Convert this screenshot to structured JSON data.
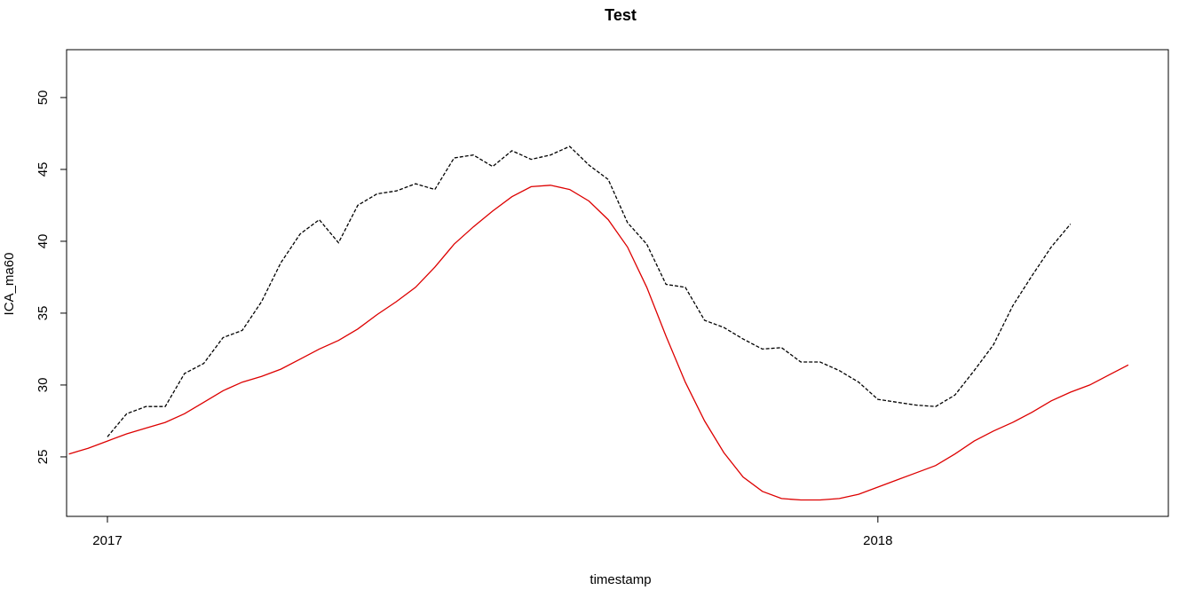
{
  "chart_data": {
    "type": "line",
    "title": "Test",
    "x_label": "timestamp",
    "y_label": "ICA_ma60",
    "x": [
      2016.95,
      2016.975,
      2017.0,
      2017.025,
      2017.05,
      2017.075,
      2017.1,
      2017.125,
      2017.15,
      2017.175,
      2017.2,
      2017.225,
      2017.25,
      2017.275,
      2017.3,
      2017.325,
      2017.35,
      2017.375,
      2017.4,
      2017.425,
      2017.45,
      2017.475,
      2017.5,
      2017.525,
      2017.55,
      2017.575,
      2017.6,
      2017.625,
      2017.65,
      2017.675,
      2017.7,
      2017.725,
      2017.75,
      2017.775,
      2017.8,
      2017.825,
      2017.85,
      2017.875,
      2017.9,
      2017.925,
      2017.95,
      2017.975,
      2018.0,
      2018.025,
      2018.05,
      2018.075,
      2018.1,
      2018.125,
      2018.15,
      2018.175,
      2018.2,
      2018.225,
      2018.25,
      2018.275,
      2018.3,
      2018.325
    ],
    "series": [
      {
        "color": "#000000",
        "linestyle": "dashed",
        "values": [
          null,
          null,
          26.4,
          28.0,
          28.5,
          28.5,
          30.8,
          31.5,
          33.3,
          33.8,
          35.8,
          38.5,
          40.5,
          41.5,
          39.9,
          42.5,
          43.3,
          43.5,
          44.0,
          43.6,
          45.8,
          46.0,
          45.2,
          46.3,
          45.7,
          46.0,
          46.6,
          45.3,
          44.3,
          41.3,
          39.8,
          37.0,
          36.8,
          34.5,
          34.0,
          33.2,
          32.5,
          32.6,
          31.6,
          31.6,
          31.0,
          30.2,
          29.0,
          28.8,
          28.6,
          28.5,
          29.3,
          31.0,
          32.8,
          35.5,
          37.6,
          39.6,
          41.2,
          null,
          null,
          null
        ]
      },
      {
        "color": "#dd0000",
        "linestyle": "solid",
        "values": [
          25.2,
          25.6,
          26.1,
          26.6,
          27.0,
          27.4,
          28.0,
          28.8,
          29.6,
          30.2,
          30.6,
          31.1,
          31.8,
          32.5,
          33.1,
          33.9,
          34.9,
          35.8,
          36.8,
          38.2,
          39.8,
          41.0,
          42.1,
          43.1,
          43.8,
          43.9,
          43.6,
          42.8,
          41.5,
          39.6,
          36.8,
          33.4,
          30.2,
          27.5,
          25.3,
          23.6,
          22.6,
          22.1,
          22.0,
          22.0,
          22.1,
          22.4,
          22.9,
          23.4,
          23.9,
          24.4,
          25.2,
          26.1,
          26.8,
          27.4,
          28.1,
          28.9,
          29.5,
          30.0,
          30.7,
          31.4
        ]
      }
    ],
    "xlim": [
      2016.947,
      2018.377
    ],
    "xticks": [
      2017,
      2018
    ],
    "ylim": [
      20.86,
      53.33
    ],
    "yticks": [
      25,
      30,
      35,
      40,
      45,
      50
    ]
  }
}
